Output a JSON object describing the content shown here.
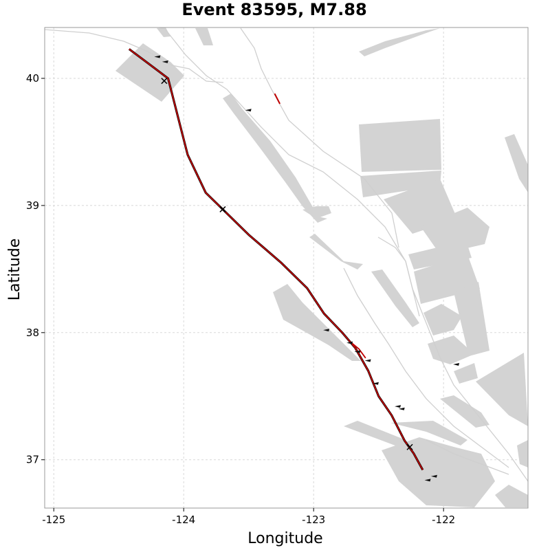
{
  "title": "Event 83595, M7.88",
  "xlabel": "Longitude",
  "ylabel": "Latitude",
  "colors": {
    "rupture": "#c00000",
    "fault_patch": "#d3d3d3",
    "trace": "#cfcfcf",
    "hypocenter": "#000000",
    "grid": "#d8d8d8"
  },
  "x_ticks": [
    {
      "value": -125,
      "label": "-125"
    },
    {
      "value": -124,
      "label": "-124"
    },
    {
      "value": -123,
      "label": "-123"
    },
    {
      "value": -122,
      "label": "-122"
    }
  ],
  "y_ticks": [
    {
      "value": 40,
      "label": "40"
    },
    {
      "value": 39,
      "label": "39"
    },
    {
      "value": 38,
      "label": "38"
    },
    {
      "value": 37,
      "label": "37"
    }
  ],
  "extent": {
    "lon": [
      -125.07,
      -121.35
    ],
    "lat": [
      36.62,
      40.4
    ]
  },
  "rupture_trace": [
    [
      -124.42,
      40.23
    ],
    [
      -124.25,
      40.1
    ],
    [
      -124.12,
      40.0
    ],
    [
      -124.07,
      39.8
    ],
    [
      -124.02,
      39.6
    ],
    [
      -123.97,
      39.4
    ],
    [
      -123.9,
      39.25
    ],
    [
      -123.83,
      39.1
    ],
    [
      -123.7,
      38.97
    ],
    [
      -123.5,
      38.77
    ],
    [
      -123.25,
      38.55
    ],
    [
      -123.05,
      38.35
    ],
    [
      -122.92,
      38.15
    ],
    [
      -122.78,
      38.0
    ],
    [
      -122.68,
      37.88
    ],
    [
      -122.58,
      37.7
    ],
    [
      -122.5,
      37.5
    ],
    [
      -122.4,
      37.35
    ],
    [
      -122.3,
      37.15
    ],
    [
      -122.23,
      37.05
    ],
    [
      -122.16,
      36.92
    ]
  ],
  "rupture_branch": [
    [
      -122.72,
      37.93
    ],
    [
      -122.65,
      37.87
    ],
    [
      -122.6,
      37.8
    ]
  ],
  "short_rupture": [
    [
      -123.3,
      39.88
    ],
    [
      -123.26,
      39.8
    ]
  ],
  "hypocenter_markers": [
    [
      -124.15,
      39.98
    ],
    [
      -123.7,
      38.97
    ],
    [
      -122.26,
      37.1
    ]
  ]
}
